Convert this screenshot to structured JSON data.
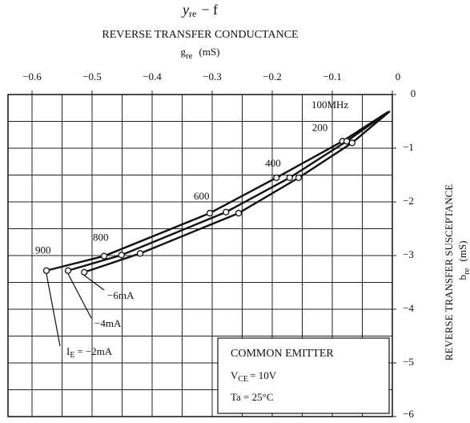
{
  "chart_data": {
    "type": "line",
    "title": {
      "symbol": "y",
      "sub": "re",
      "rest": "− f"
    },
    "subtitle": "REVERSE TRANSFER CONDUCTANCE",
    "x_label": {
      "symbol": "g",
      "sub": "re",
      "unit": "(mS)"
    },
    "y_label": {
      "text": "REVERSE TRANSFER SUSCEPTANCE",
      "symbol": "b",
      "sub": "re",
      "unit": "(mS)"
    },
    "xlim": [
      -0.64,
      0
    ],
    "ylim": [
      -6,
      0
    ],
    "xticks": [
      {
        "value": -0.6,
        "label": "−0.6"
      },
      {
        "value": -0.5,
        "label": "−0.5"
      },
      {
        "value": -0.4,
        "label": "−0.4"
      },
      {
        "value": -0.3,
        "label": "−0.3"
      },
      {
        "value": -0.2,
        "label": "−0.2"
      },
      {
        "value": -0.1,
        "label": "−0.1"
      },
      0
    ],
    "yticks": [
      0,
      {
        "value": -1,
        "label": "−1"
      },
      {
        "value": -2,
        "label": "−2"
      },
      {
        "value": -3,
        "label": "−3"
      },
      {
        "value": -4,
        "label": "−4"
      },
      {
        "value": -5,
        "label": "−5"
      },
      {
        "value": -6,
        "label": "−6"
      }
    ],
    "xgrid": [
      -0.6,
      -0.55,
      -0.5,
      -0.45,
      -0.4,
      -0.35,
      -0.3,
      -0.25,
      -0.2,
      -0.15,
      -0.1,
      -0.05
    ],
    "ygrid": [
      -0.5,
      -1,
      -1.5,
      -2,
      -2.5,
      -3,
      -3.5,
      -4,
      -4.5,
      -5,
      -5.5
    ],
    "grid": true,
    "frequencies": [
      "900",
      "800",
      "600",
      "400",
      "200",
      "100MHz"
    ],
    "current_label": {
      "symbol": "I",
      "sub": "E",
      "eq": "="
    },
    "series": [
      {
        "name": "−2mA",
        "color": "#111",
        "x": [
          -0.576,
          -0.48,
          -0.304,
          -0.193,
          -0.083,
          -0.008
        ],
        "values": [
          -3.28,
          -3.01,
          -2.21,
          -1.55,
          -0.87,
          -0.33
        ]
      },
      {
        "name": "−4mA",
        "color": "#111",
        "x": [
          -0.54,
          -0.451,
          -0.277,
          -0.171,
          -0.076,
          -0.006
        ],
        "values": [
          -3.28,
          -2.99,
          -2.19,
          -1.55,
          -0.87,
          -0.32
        ]
      },
      {
        "name": "−6mA",
        "color": "#111",
        "x": [
          -0.513,
          -0.42,
          -0.256,
          -0.156,
          -0.067,
          -0.004
        ],
        "values": [
          -3.31,
          -2.96,
          -2.21,
          -1.55,
          -0.9,
          -0.31
        ]
      }
    ],
    "box": {
      "line1": "COMMON EMITTER",
      "line2": {
        "symbol": "V",
        "sub": "CE",
        "rest": "= 10V"
      },
      "line3": "Ta = 25°C"
    }
  }
}
